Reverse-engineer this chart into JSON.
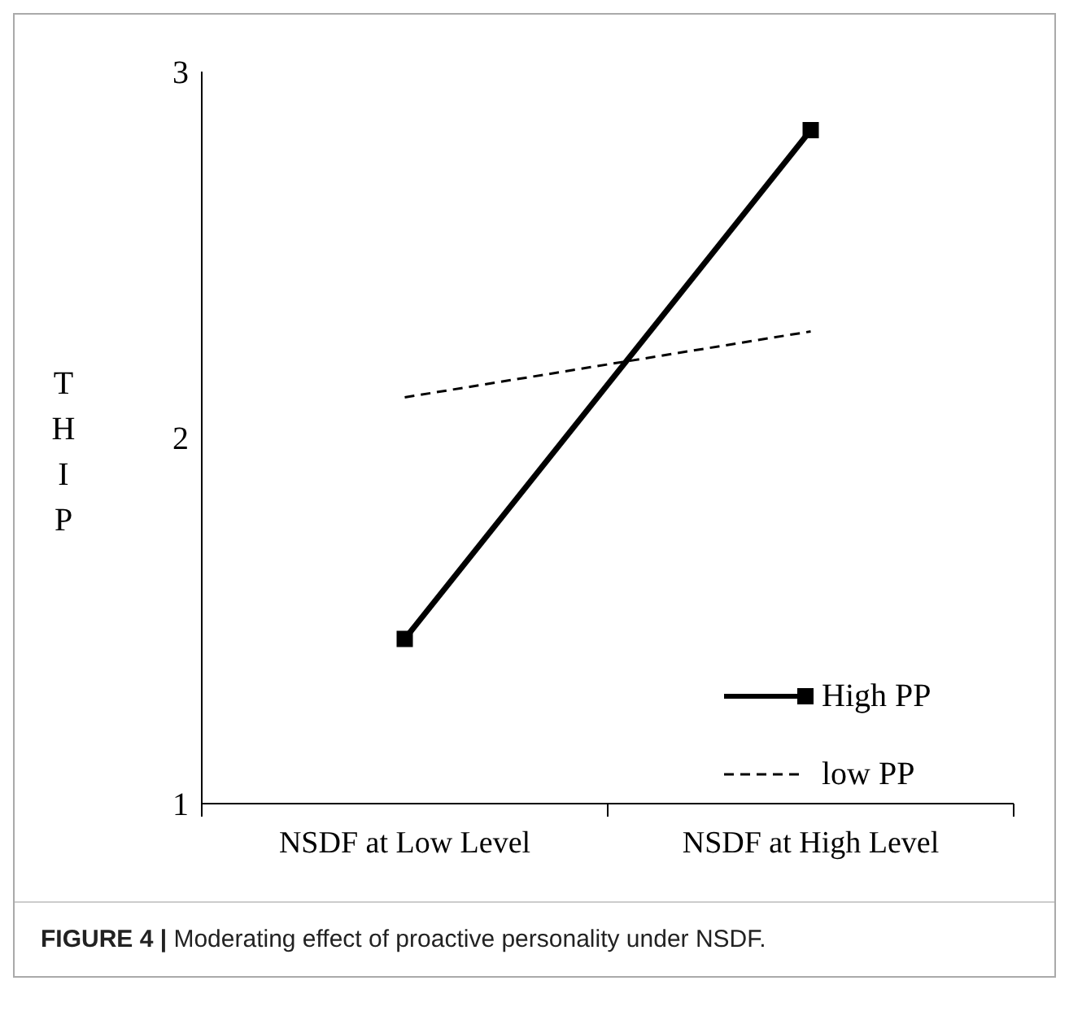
{
  "chart_data": {
    "type": "line",
    "ylabel": "THIP",
    "categories": [
      "NSDF at Low Level",
      "NSDF at High Level"
    ],
    "series": [
      {
        "name": "High PP",
        "color": "#000000",
        "values": [
          1.45,
          2.84
        ],
        "marker": "square",
        "line_style": "solid"
      },
      {
        "name": "low PP",
        "color": "#000000",
        "values": [
          2.11,
          2.29
        ],
        "marker": "none",
        "line_style": "dashed"
      }
    ],
    "ylim": [
      1,
      3
    ],
    "yticks": [
      1,
      2,
      3
    ],
    "grid": false,
    "legend": "bottom right",
    "annotations": [
      "FIGURE 4 | Moderating effect of proactive personality under NSDF."
    ]
  }
}
